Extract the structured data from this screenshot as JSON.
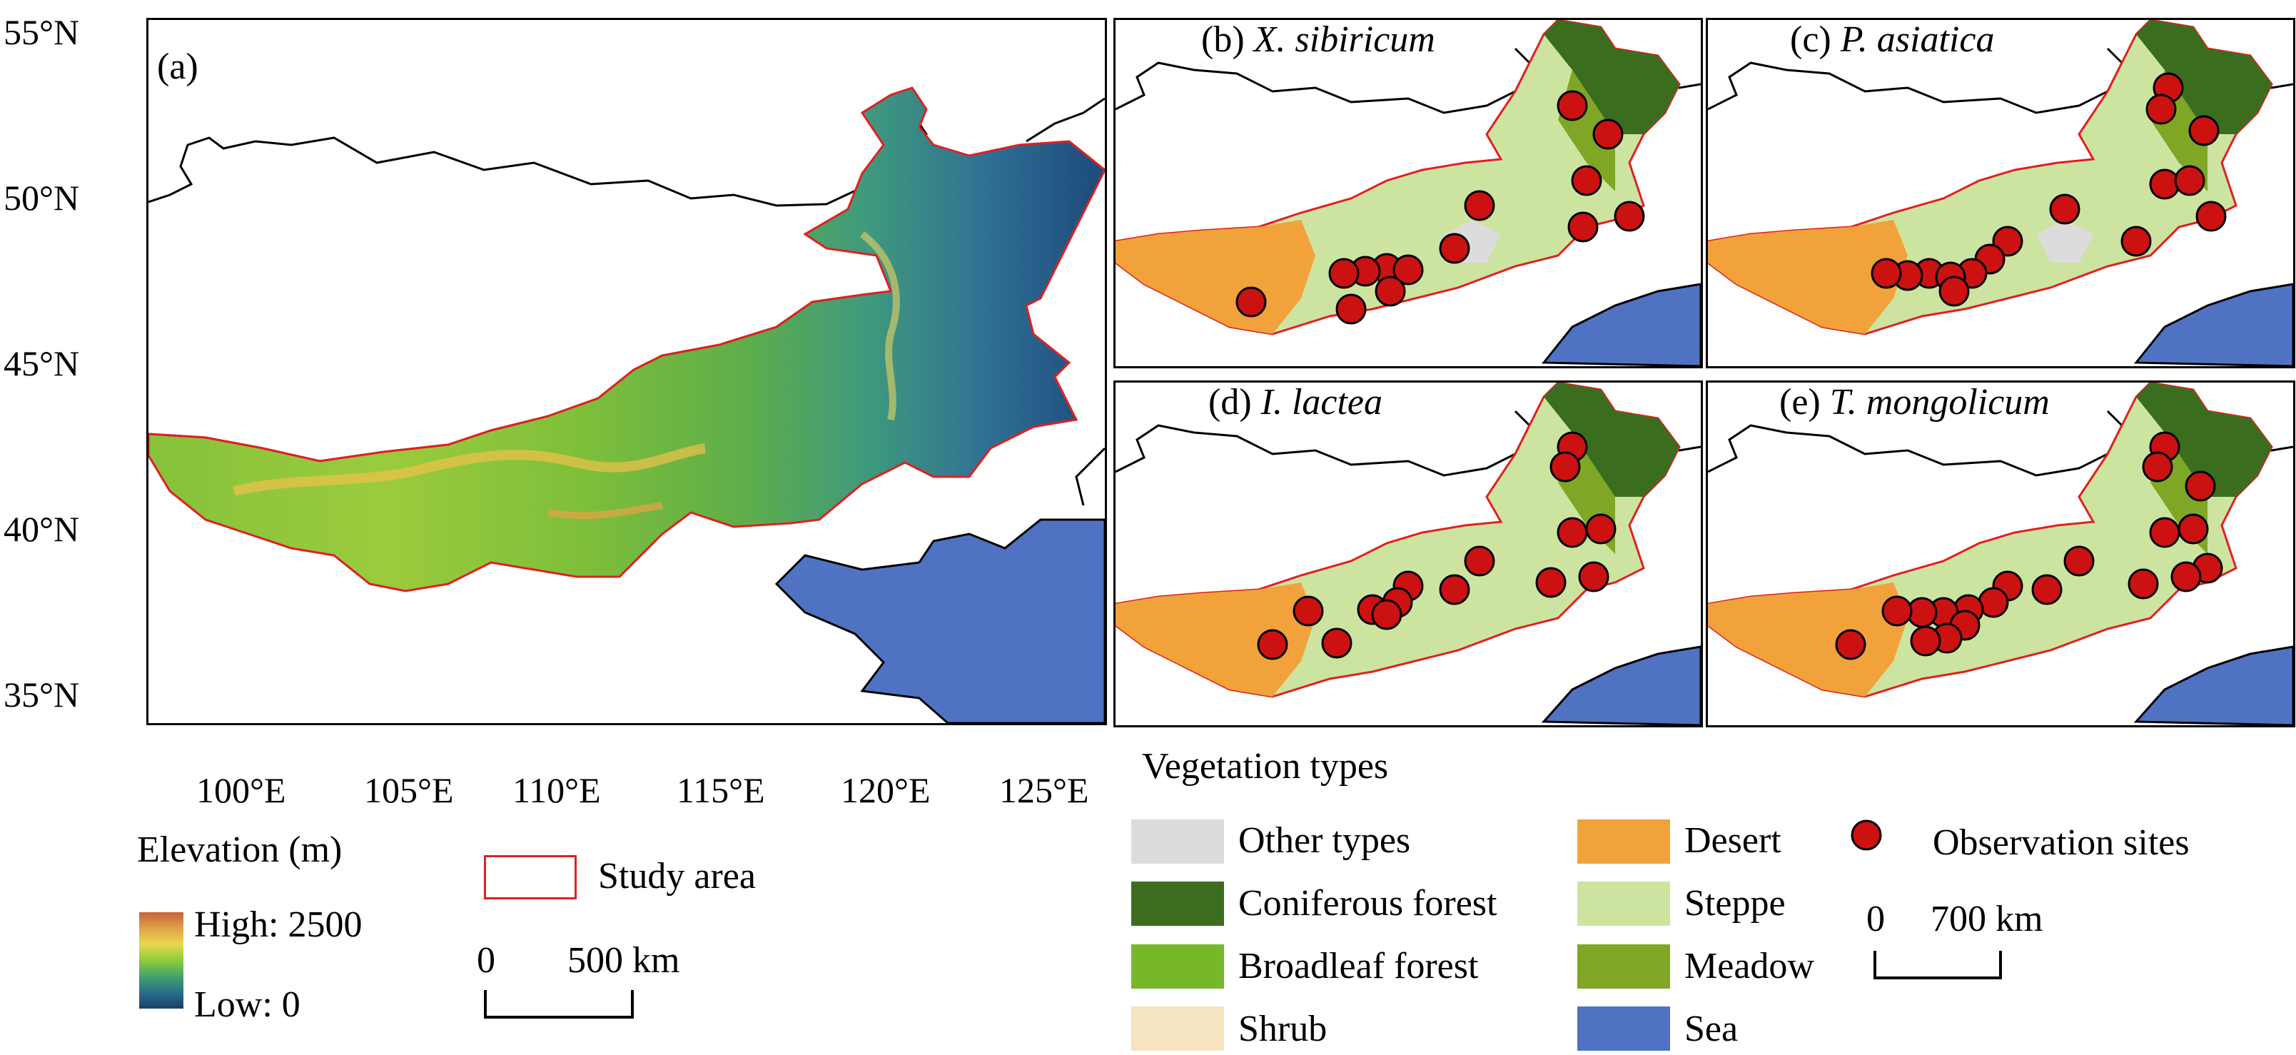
{
  "panel_a": {
    "label": "(a)",
    "lat_ticks": [
      "55°N",
      "50°N",
      "45°N",
      "40°N",
      "35°N"
    ],
    "lon_ticks": [
      "100°E",
      "105°E",
      "110°E",
      "115°E",
      "120°E",
      "125°E"
    ]
  },
  "panels": [
    {
      "letter": "(b)",
      "species": "X. sibiricum"
    },
    {
      "letter": "(c)",
      "species": "P. asiatica"
    },
    {
      "letter": "(d)",
      "species": "I. lactea"
    },
    {
      "letter": "(e)",
      "species": "T. mongolicum"
    }
  ],
  "elevation_legend": {
    "title": "Elevation (m)",
    "high": "High: 2500",
    "low": "Low: 0"
  },
  "study_area_legend": {
    "label": "Study area",
    "color": "#e02020"
  },
  "scale_bar_a": {
    "zero": "0",
    "distance": "500 km"
  },
  "scale_bar_b": {
    "zero": "0",
    "distance": "700 km"
  },
  "vegetation_legend": {
    "title": "Vegetation types",
    "items": [
      {
        "label": "Other types",
        "color": "#dcdcdc"
      },
      {
        "label": "Coniferous forest",
        "color": "#3a6e1e"
      },
      {
        "label": "Broadleaf forest",
        "color": "#77b82a"
      },
      {
        "label": "Shrub",
        "color": "#f6e3bf"
      },
      {
        "label": "Desert",
        "color": "#f2a23a"
      },
      {
        "label": "Steppe",
        "color": "#cde4a0"
      },
      {
        "label": "Meadow",
        "color": "#7fa624"
      },
      {
        "label": "Sea",
        "color": "#4f73c2"
      }
    ],
    "observation_label": "Observation sites",
    "observation_color": "#cc1111"
  }
}
